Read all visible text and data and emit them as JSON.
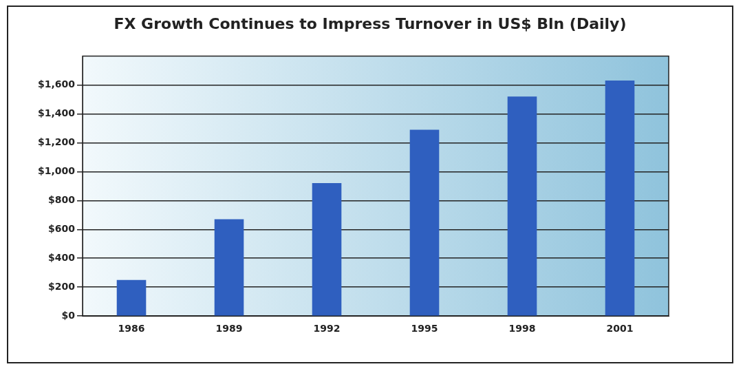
{
  "chart_data": {
    "type": "bar",
    "title": "FX Growth Continues to Impress Turnover in US$ Bln (Daily)",
    "categories": [
      "1986",
      "1989",
      "1992",
      "1995",
      "1998",
      "2001"
    ],
    "values": [
      250,
      670,
      920,
      1290,
      1520,
      1630
    ],
    "color": "#2f5fbf",
    "ylim": [
      0,
      1800
    ],
    "yticks": [
      {
        "value": 0,
        "label": "$0"
      },
      {
        "value": 200,
        "label": "$200"
      },
      {
        "value": 400,
        "label": "$400"
      },
      {
        "value": 600,
        "label": "$600"
      },
      {
        "value": 800,
        "label": "$800"
      },
      {
        "value": 1000,
        "label": "$1,000"
      },
      {
        "value": 1200,
        "label": "$1,200"
      },
      {
        "value": 1400,
        "label": "$1,400"
      },
      {
        "value": 1600,
        "label": "$1,600"
      }
    ],
    "grid": "y",
    "legend": false
  }
}
